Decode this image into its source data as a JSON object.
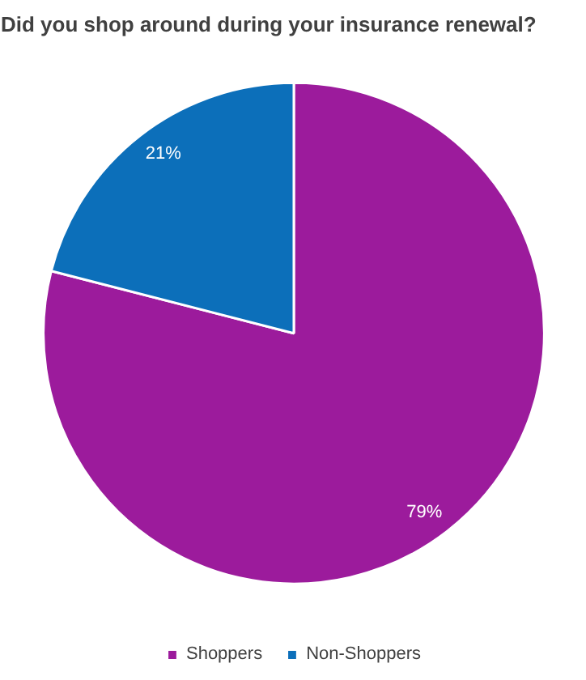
{
  "chart_data": {
    "type": "pie",
    "title": "Did you shop around during your insurance renewal?",
    "categories": [
      "Shoppers",
      "Non-Shoppers"
    ],
    "values": [
      79,
      21
    ],
    "colors": [
      "#9c1b9c",
      "#0c6fba"
    ],
    "value_labels": [
      "79%",
      "21%"
    ],
    "legend": "bottom"
  }
}
